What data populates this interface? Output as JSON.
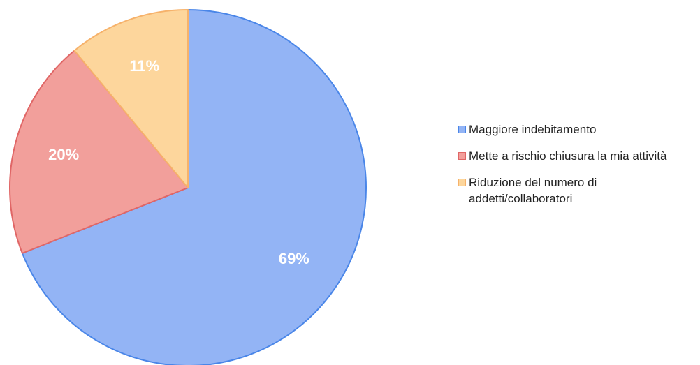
{
  "chart_data": {
    "type": "pie",
    "categories": [
      "Maggiore indebitamento",
      "Mette a rischio chiusura la mia attività",
      "Riduzione del numero di addetti/collaboratori"
    ],
    "values": [
      69,
      20,
      11
    ],
    "value_labels": [
      "69%",
      "20%",
      "11%"
    ],
    "colors": [
      "#93b4f5",
      "#f29f9b",
      "#fdd69c"
    ],
    "border_colors": [
      "#4a86e8",
      "#e06666",
      "#f6b26b"
    ],
    "legend": "right"
  }
}
